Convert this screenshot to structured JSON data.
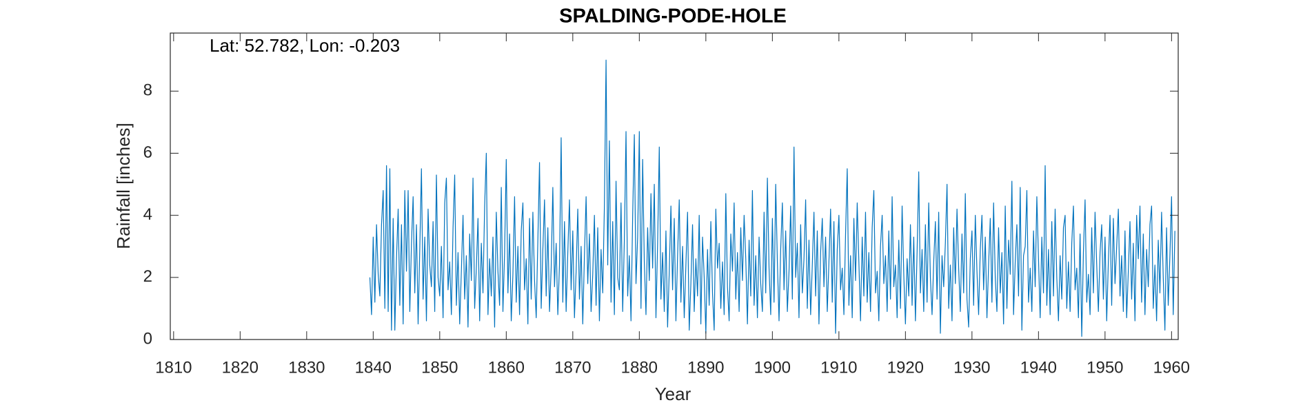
{
  "chart_data": {
    "type": "line",
    "title": "SPALDING-PODE-HOLE",
    "annotation": "Lat: 52.782, Lon: -0.203",
    "x_label": "Year",
    "y_label": "Rainfall [inches]",
    "xlim": [
      1809.5,
      1961
    ],
    "ylim": [
      0,
      9.87
    ],
    "xticks": [
      1810,
      1820,
      1830,
      1840,
      1850,
      1860,
      1870,
      1880,
      1890,
      1900,
      1910,
      1920,
      1930,
      1940,
      1950,
      1960
    ],
    "yticks": [
      0,
      2,
      4,
      6,
      8
    ],
    "grid": false,
    "x": [
      1839.5,
      1839.75,
      1840,
      1840.25,
      1840.5,
      1840.75,
      1841,
      1841.25,
      1841.5,
      1841.75,
      1842,
      1842.25,
      1842.5,
      1842.75,
      1843,
      1843.25,
      1843.5,
      1843.75,
      1844,
      1844.25,
      1844.5,
      1844.75,
      1845,
      1845.25,
      1845.5,
      1845.75,
      1846,
      1846.25,
      1846.5,
      1846.75,
      1847,
      1847.25,
      1847.5,
      1847.75,
      1848,
      1848.25,
      1848.5,
      1848.75,
      1849,
      1849.25,
      1849.5,
      1849.75,
      1850,
      1850.25,
      1850.5,
      1850.75,
      1851,
      1851.25,
      1851.5,
      1851.75,
      1852,
      1852.25,
      1852.5,
      1852.75,
      1853,
      1853.25,
      1853.5,
      1853.75,
      1854,
      1854.25,
      1854.5,
      1854.75,
      1855,
      1855.25,
      1855.5,
      1855.75,
      1856,
      1856.25,
      1856.5,
      1856.75,
      1857,
      1857.25,
      1857.5,
      1857.75,
      1858,
      1858.25,
      1858.5,
      1858.75,
      1859,
      1859.25,
      1859.5,
      1859.75,
      1860,
      1860.25,
      1860.5,
      1860.75,
      1861,
      1861.25,
      1861.5,
      1861.75,
      1862,
      1862.25,
      1862.5,
      1862.75,
      1863,
      1863.25,
      1863.5,
      1863.75,
      1864,
      1864.25,
      1864.5,
      1864.75,
      1865,
      1865.25,
      1865.5,
      1865.75,
      1866,
      1866.25,
      1866.5,
      1866.75,
      1867,
      1867.25,
      1867.5,
      1867.75,
      1868,
      1868.25,
      1868.5,
      1868.75,
      1869,
      1869.25,
      1869.5,
      1869.75,
      1870,
      1870.25,
      1870.5,
      1870.75,
      1871,
      1871.25,
      1871.5,
      1871.75,
      1872,
      1872.25,
      1872.5,
      1872.75,
      1873,
      1873.25,
      1873.5,
      1873.75,
      1874,
      1874.25,
      1874.5,
      1874.75,
      1875,
      1875.25,
      1875.5,
      1875.75,
      1876,
      1876.25,
      1876.5,
      1876.75,
      1877,
      1877.25,
      1877.5,
      1877.75,
      1878,
      1878.25,
      1878.5,
      1878.75,
      1879,
      1879.25,
      1879.5,
      1879.75,
      1880,
      1880.25,
      1880.5,
      1880.75,
      1881,
      1881.25,
      1881.5,
      1881.75,
      1882,
      1882.25,
      1882.5,
      1882.75,
      1883,
      1883.25,
      1883.5,
      1883.75,
      1884,
      1884.25,
      1884.5,
      1884.75,
      1885,
      1885.25,
      1885.5,
      1885.75,
      1886,
      1886.25,
      1886.5,
      1886.75,
      1887,
      1887.25,
      1887.5,
      1887.75,
      1888,
      1888.25,
      1888.5,
      1888.75,
      1889,
      1889.25,
      1889.5,
      1889.75,
      1890,
      1890.25,
      1890.5,
      1890.75,
      1891,
      1891.25,
      1891.5,
      1891.75,
      1892,
      1892.25,
      1892.5,
      1892.75,
      1893,
      1893.25,
      1893.5,
      1893.75,
      1894,
      1894.25,
      1894.5,
      1894.75,
      1895,
      1895.25,
      1895.5,
      1895.75,
      1896,
      1896.25,
      1896.5,
      1896.75,
      1897,
      1897.25,
      1897.5,
      1897.75,
      1898,
      1898.25,
      1898.5,
      1898.75,
      1899,
      1899.25,
      1899.5,
      1899.75,
      1900,
      1900.25,
      1900.5,
      1900.75,
      1901,
      1901.25,
      1901.5,
      1901.75,
      1902,
      1902.25,
      1902.5,
      1902.75,
      1903,
      1903.25,
      1903.5,
      1903.75,
      1904,
      1904.25,
      1904.5,
      1904.75,
      1905,
      1905.25,
      1905.5,
      1905.75,
      1906,
      1906.25,
      1906.5,
      1906.75,
      1907,
      1907.25,
      1907.5,
      1907.75,
      1908,
      1908.25,
      1908.5,
      1908.75,
      1909,
      1909.25,
      1909.5,
      1909.75,
      1910,
      1910.25,
      1910.5,
      1910.75,
      1911,
      1911.25,
      1911.5,
      1911.75,
      1912,
      1912.25,
      1912.5,
      1912.75,
      1913,
      1913.25,
      1913.5,
      1913.75,
      1914,
      1914.25,
      1914.5,
      1914.75,
      1915,
      1915.25,
      1915.5,
      1915.75,
      1916,
      1916.25,
      1916.5,
      1916.75,
      1917,
      1917.25,
      1917.5,
      1917.75,
      1918,
      1918.25,
      1918.5,
      1918.75,
      1919,
      1919.25,
      1919.5,
      1919.75,
      1920,
      1920.25,
      1920.5,
      1920.75,
      1921,
      1921.25,
      1921.5,
      1921.75,
      1922,
      1922.25,
      1922.5,
      1922.75,
      1923,
      1923.25,
      1923.5,
      1923.75,
      1924,
      1924.25,
      1924.5,
      1924.75,
      1925,
      1925.25,
      1925.5,
      1925.75,
      1926,
      1926.25,
      1926.5,
      1926.75,
      1927,
      1927.25,
      1927.5,
      1927.75,
      1928,
      1928.25,
      1928.5,
      1928.75,
      1929,
      1929.25,
      1929.5,
      1929.75,
      1930,
      1930.25,
      1930.5,
      1930.75,
      1931,
      1931.25,
      1931.5,
      1931.75,
      1932,
      1932.25,
      1932.5,
      1932.75,
      1933,
      1933.25,
      1933.5,
      1933.75,
      1934,
      1934.25,
      1934.5,
      1934.75,
      1935,
      1935.25,
      1935.5,
      1935.75,
      1936,
      1936.25,
      1936.5,
      1936.75,
      1937,
      1937.25,
      1937.5,
      1937.75,
      1938,
      1938.25,
      1938.5,
      1938.75,
      1939,
      1939.25,
      1939.5,
      1939.75,
      1940,
      1940.25,
      1940.5,
      1940.75,
      1941,
      1941.25,
      1941.5,
      1941.75,
      1942,
      1942.25,
      1942.5,
      1942.75,
      1943,
      1943.25,
      1943.5,
      1943.75,
      1944,
      1944.25,
      1944.5,
      1944.75,
      1945,
      1945.25,
      1945.5,
      1945.75,
      1946,
      1946.25,
      1946.5,
      1946.75,
      1947,
      1947.25,
      1947.5,
      1947.75,
      1948,
      1948.25,
      1948.5,
      1948.75,
      1949,
      1949.25,
      1949.5,
      1949.75,
      1950,
      1950.25,
      1950.5,
      1950.75,
      1951,
      1951.25,
      1951.5,
      1951.75,
      1952,
      1952.25,
      1952.5,
      1952.75,
      1953,
      1953.25,
      1953.5,
      1953.75,
      1954,
      1954.25,
      1954.5,
      1954.75,
      1955,
      1955.25,
      1955.5,
      1955.75,
      1956,
      1956.25,
      1956.5,
      1956.75,
      1957,
      1957.25,
      1957.5,
      1957.75,
      1958,
      1958.25,
      1958.5,
      1958.75,
      1959,
      1959.25,
      1959.5,
      1959.75,
      1960,
      1960.25,
      1960.5
    ],
    "series": [
      {
        "name": "Rainfall",
        "color": "#0072BD",
        "values": [
          2.0,
          0.8,
          3.3,
          1.2,
          3.7,
          2.1,
          1.4,
          3.7,
          4.8,
          1.0,
          5.6,
          0.9,
          5.5,
          0.3,
          3.9,
          0.3,
          2.6,
          4.2,
          1.1,
          3.7,
          0.5,
          4.8,
          2.2,
          4.8,
          0.9,
          3.1,
          4.6,
          1.5,
          3.7,
          0.5,
          2.9,
          5.5,
          1.3,
          3.3,
          0.6,
          4.2,
          2.4,
          1.7,
          3.8,
          0.9,
          5.3,
          2.0,
          1.4,
          3.0,
          0.7,
          4.4,
          5.2,
          1.6,
          2.5,
          0.8,
          3.6,
          5.3,
          1.1,
          2.8,
          0.5,
          2.2,
          4.0,
          1.3,
          2.7,
          0.4,
          3.4,
          1.9,
          5.2,
          1.0,
          2.3,
          3.9,
          0.6,
          3.1,
          1.5,
          4.3,
          6.0,
          0.8,
          2.6,
          1.4,
          3.3,
          0.4,
          4.1,
          2.2,
          1.1,
          4.9,
          0.9,
          2.8,
          5.8,
          1.5,
          3.4,
          0.6,
          2.1,
          4.6,
          1.2,
          3.0,
          0.8,
          3.5,
          4.4,
          1.6,
          2.6,
          0.5,
          3.9,
          1.3,
          4.1,
          1.9,
          0.7,
          3.2,
          5.7,
          1.0,
          2.9,
          4.5,
          1.4,
          3.6,
          0.9,
          2.3,
          4.9,
          1.7,
          3.1,
          0.8,
          2.4,
          6.5,
          1.2,
          3.8,
          0.9,
          2.8,
          4.5,
          1.6,
          3.5,
          0.7,
          2.2,
          4.2,
          1.3,
          3.0,
          0.5,
          2.7,
          4.6,
          1.8,
          3.4,
          0.9,
          2.1,
          4.0,
          1.1,
          3.6,
          0.6,
          2.9,
          1.5,
          4.3,
          9.0,
          2.4,
          6.4,
          1.2,
          3.8,
          0.8,
          5.1,
          2.0,
          1.6,
          4.4,
          0.9,
          3.2,
          6.7,
          1.4,
          2.7,
          0.6,
          4.0,
          6.6,
          1.8,
          3.3,
          6.7,
          1.0,
          5.8,
          2.5,
          0.8,
          3.6,
          1.9,
          4.7,
          2.3,
          5.0,
          0.7,
          3.1,
          6.2,
          1.3,
          2.8,
          0.9,
          3.5,
          0.4,
          2.2,
          4.3,
          1.6,
          3.9,
          0.6,
          2.7,
          4.5,
          1.2,
          3.0,
          0.7,
          2.4,
          4.1,
          0.3,
          1.8,
          3.7,
          0.9,
          2.6,
          1.4,
          4.0,
          0.5,
          3.3,
          2.0,
          0.2,
          2.9,
          1.1,
          3.8,
          1.5,
          0.3,
          4.2,
          2.3,
          3.1,
          1.0,
          2.5,
          0.8,
          4.7,
          1.7,
          0.6,
          3.4,
          2.2,
          4.4,
          1.3,
          2.8,
          0.9,
          3.6,
          1.9,
          4.0,
          2.6,
          0.5,
          3.2,
          1.4,
          4.8,
          1.1,
          2.7,
          0.7,
          3.3,
          1.8,
          0.9,
          4.1,
          1.5,
          5.2,
          2.3,
          0.8,
          3.9,
          1.2,
          5.0,
          2.5,
          0.6,
          2.9,
          4.4,
          1.6,
          3.5,
          0.9,
          2.2,
          4.3,
          1.3,
          6.2,
          2.0,
          3.1,
          0.7,
          3.7,
          1.5,
          2.6,
          4.5,
          1.0,
          3.2,
          0.8,
          2.4,
          4.1,
          1.4,
          3.5,
          0.5,
          2.8,
          3.9,
          1.7,
          3.3,
          0.9,
          2.5,
          4.2,
          1.2,
          3.8,
          0.2,
          2.9,
          4.0,
          1.6,
          2.3,
          0.8,
          3.4,
          5.5,
          1.1,
          2.7,
          0.7,
          3.9,
          1.9,
          4.4,
          2.5,
          0.6,
          3.3,
          1.4,
          4.1,
          1.2,
          2.8,
          0.9,
          3.6,
          4.8,
          1.5,
          2.2,
          0.6,
          3.0,
          4.0,
          1.8,
          2.7,
          0.9,
          3.5,
          1.3,
          4.6,
          1.7,
          2.4,
          0.7,
          3.2,
          1.0,
          4.3,
          2.1,
          0.5,
          2.6,
          1.4,
          3.7,
          1.1,
          3.3,
          0.6,
          2.8,
          5.4,
          1.5,
          2.9,
          0.9,
          3.7,
          1.2,
          4.4,
          2.0,
          0.8,
          2.5,
          3.8,
          1.3,
          4.1,
          0.2,
          2.7,
          1.7,
          3.1,
          5.0,
          1.0,
          2.4,
          0.6,
          3.6,
          1.8,
          4.2,
          2.3,
          0.9,
          3.4,
          1.5,
          4.7,
          1.3,
          0.4,
          2.6,
          3.5,
          1.1,
          4.0,
          2.2,
          0.8,
          2.9,
          4.0,
          1.6,
          3.3,
          0.7,
          2.4,
          3.9,
          1.2,
          4.4,
          2.0,
          0.9,
          3.6,
          1.5,
          2.8,
          0.5,
          4.3,
          1.0,
          3.2,
          2.1,
          5.1,
          0.8,
          2.5,
          3.7,
          1.4,
          4.9,
          0.3,
          2.7,
          3.0,
          4.8,
          1.2,
          2.3,
          0.9,
          3.5,
          1.7,
          4.6,
          2.6,
          0.7,
          3.3,
          1.5,
          5.6,
          1.1,
          2.9,
          0.8,
          3.8,
          1.4,
          4.2,
          2.0,
          0.6,
          2.7,
          1.3,
          3.6,
          4.0,
          1.0,
          2.5,
          0.9,
          3.1,
          4.3,
          1.6,
          2.3,
          0.7,
          3.4,
          0.1,
          2.8,
          4.5,
          1.2,
          2.1,
          0.8,
          3.6,
          1.5,
          4.1,
          2.4,
          0.9,
          2.8,
          3.7,
          1.3,
          3.3,
          0.6,
          2.5,
          4.0,
          1.1,
          3.9,
          1.8,
          3.0,
          4.2,
          1.4,
          2.7,
          0.9,
          3.5,
          0.7,
          2.2,
          3.8,
          1.3,
          3.1,
          0.6,
          4.0,
          2.6,
          4.3,
          1.2,
          3.4,
          0.8,
          2.9,
          1.7,
          3.7,
          4.3,
          1.0,
          2.4,
          0.6,
          3.2,
          1.5,
          4.1,
          2.0,
          0.3,
          3.6,
          1.1,
          2.7,
          4.6,
          0.8,
          3.5
        ]
      }
    ]
  }
}
